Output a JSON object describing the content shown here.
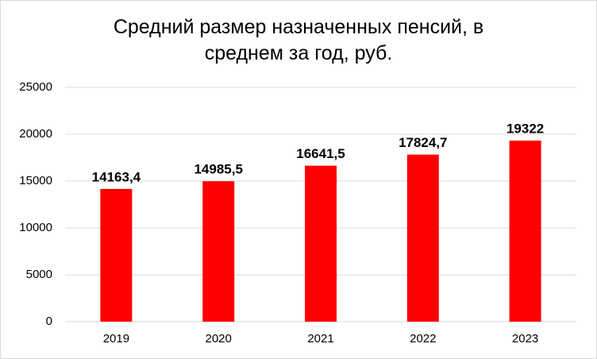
{
  "chart_data": {
    "type": "bar",
    "title": "Средний размер назначенных пенсий, в среднем за год, руб.",
    "categories": [
      "2019",
      "2020",
      "2021",
      "2022",
      "2023"
    ],
    "values": [
      14163.4,
      14985.5,
      16641.5,
      17824.7,
      19322
    ],
    "value_labels": [
      "14163,4",
      "14985,5",
      "16641,5",
      "17824,7",
      "19322"
    ],
    "color": "#ff0000",
    "ylim": [
      0,
      25000
    ],
    "yticks": [
      0,
      5000,
      10000,
      15000,
      20000,
      25000
    ],
    "grid": true
  }
}
